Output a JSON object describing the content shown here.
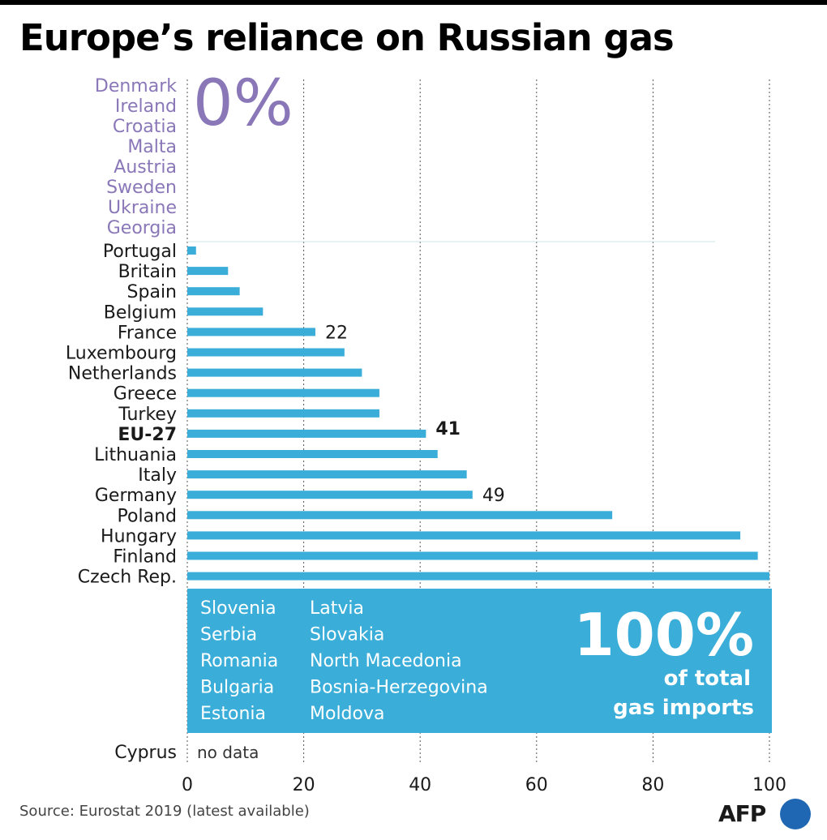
{
  "title": "Europe’s reliance on Russian gas",
  "source": "Source: Eurostat 2019 (latest available)",
  "logo": "AFP",
  "colors": {
    "bar": "#3aaed8",
    "zero_group": "#8a77b8",
    "grid": "#555555"
  },
  "chart_data": {
    "type": "bar",
    "orientation": "horizontal",
    "xlim": [
      0,
      100
    ],
    "x_ticks": [
      "0",
      "20",
      "40",
      "60",
      "80",
      "100"
    ],
    "grid": true,
    "zero_group": {
      "label": "0%",
      "countries": [
        "Denmark",
        "Ireland",
        "Croatia",
        "Malta",
        "Austria",
        "Sweden",
        "Ukraine",
        "Georgia"
      ]
    },
    "categories": [
      "Portugal",
      "Britain",
      "Spain",
      "Belgium",
      "France",
      "Luxembourg",
      "Netherlands",
      "Greece",
      "Turkey",
      "EU-27",
      "Lithuania",
      "Italy",
      "Germany",
      "Poland",
      "Hungary",
      "Finland",
      "Czech Rep."
    ],
    "values": [
      1.5,
      7,
      9,
      13,
      22,
      27,
      30,
      33,
      33,
      41,
      43,
      48,
      49,
      73,
      95,
      98,
      100
    ],
    "highlight": "EU-27",
    "data_labels": [
      {
        "category": "France",
        "text": "22"
      },
      {
        "category": "EU-27",
        "text": "41"
      },
      {
        "category": "Germany",
        "text": "49"
      }
    ],
    "full_group": {
      "label": "100%",
      "sublabel_line1": "of total",
      "sublabel_line2": "gas imports",
      "countries_col1": [
        "Slovenia",
        "Serbia",
        "Romania",
        "Bulgaria",
        "Estonia"
      ],
      "countries_col2": [
        "Latvia",
        "Slovakia",
        "North Macedonia",
        "Bosnia-Herzegovina",
        "Moldova"
      ]
    },
    "no_data": {
      "country": "Cyprus",
      "text": "no data"
    }
  }
}
